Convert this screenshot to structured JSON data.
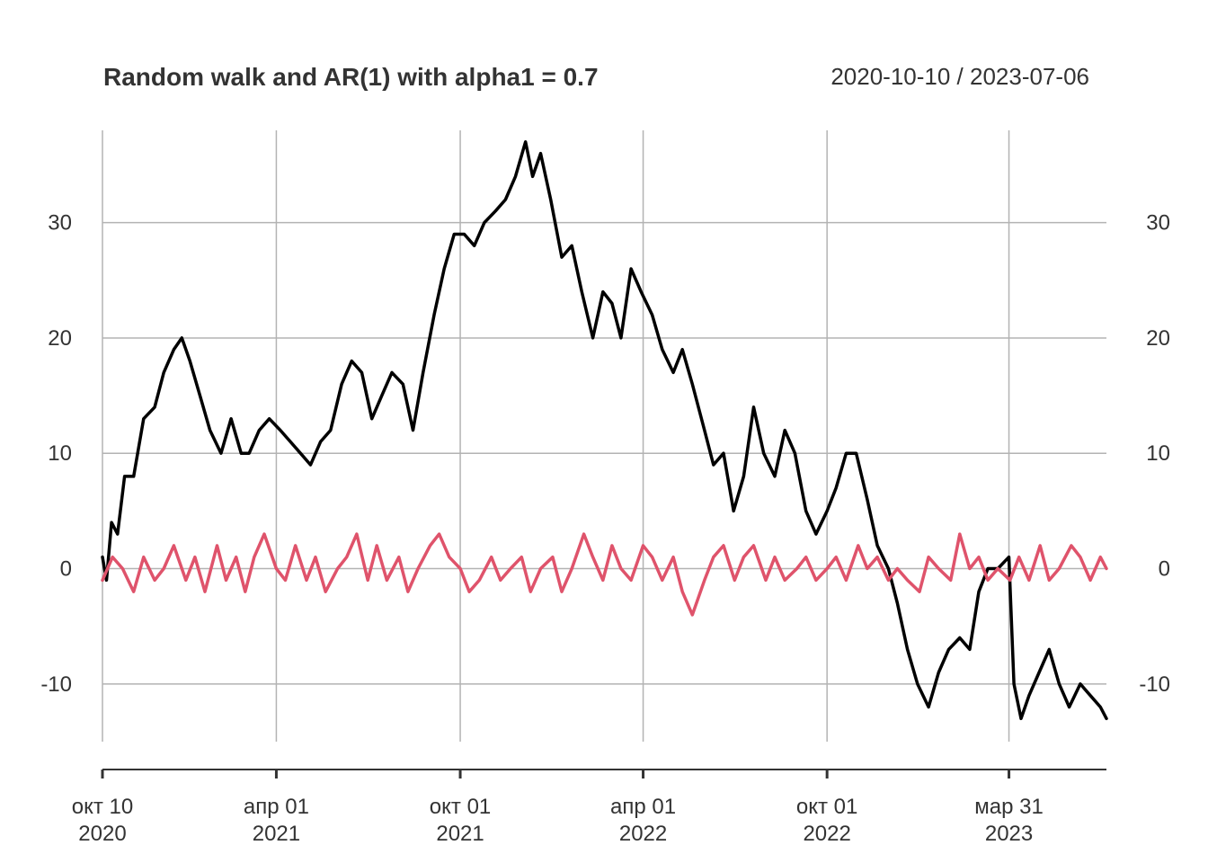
{
  "chart_data": {
    "type": "line",
    "title": "Random walk and AR(1) with alpha1 =  0.7",
    "date_range_label": "2020-10-10 / 2023-07-06",
    "x_start": "2020-10-10",
    "x_end": "2023-07-06",
    "ylim": [
      -15,
      38
    ],
    "y_ticks": [
      -10,
      0,
      10,
      20,
      30
    ],
    "y_tick_labels": [
      "-10",
      "0",
      "10",
      "20",
      "30"
    ],
    "x_ticks": [
      {
        "date": "2020-10-10",
        "month": "окт 10",
        "year": "2020"
      },
      {
        "date": "2021-04-01",
        "month": "апр 01",
        "year": "2021"
      },
      {
        "date": "2021-10-01",
        "month": "окт 01",
        "year": "2021"
      },
      {
        "date": "2022-04-01",
        "month": "апр 01",
        "year": "2022"
      },
      {
        "date": "2022-10-01",
        "month": "окт 01",
        "year": "2022"
      },
      {
        "date": "2023-03-31",
        "month": "мар 31",
        "year": "2023"
      }
    ],
    "grid": true,
    "series": [
      {
        "color": "#000000",
        "points": [
          [
            "2020-10-10",
            1
          ],
          [
            "2020-10-14",
            -1
          ],
          [
            "2020-10-19",
            4
          ],
          [
            "2020-10-25",
            3
          ],
          [
            "2020-11-01",
            8
          ],
          [
            "2020-11-10",
            8
          ],
          [
            "2020-11-20",
            13
          ],
          [
            "2020-12-01",
            14
          ],
          [
            "2020-12-10",
            17
          ],
          [
            "2020-12-20",
            19
          ],
          [
            "2020-12-28",
            20
          ],
          [
            "2021-01-05",
            18
          ],
          [
            "2021-01-15",
            15
          ],
          [
            "2021-01-25",
            12
          ],
          [
            "2021-02-05",
            10
          ],
          [
            "2021-02-15",
            13
          ],
          [
            "2021-02-25",
            10
          ],
          [
            "2021-03-05",
            10
          ],
          [
            "2021-03-15",
            12
          ],
          [
            "2021-03-25",
            13
          ],
          [
            "2021-04-05",
            12
          ],
          [
            "2021-04-15",
            11
          ],
          [
            "2021-04-25",
            10
          ],
          [
            "2021-05-05",
            9
          ],
          [
            "2021-05-15",
            11
          ],
          [
            "2021-05-25",
            12
          ],
          [
            "2021-06-05",
            16
          ],
          [
            "2021-06-15",
            18
          ],
          [
            "2021-06-25",
            17
          ],
          [
            "2021-07-05",
            13
          ],
          [
            "2021-07-15",
            15
          ],
          [
            "2021-07-25",
            17
          ],
          [
            "2021-08-05",
            16
          ],
          [
            "2021-08-15",
            12
          ],
          [
            "2021-08-25",
            17
          ],
          [
            "2021-09-05",
            22
          ],
          [
            "2021-09-15",
            26
          ],
          [
            "2021-09-25",
            29
          ],
          [
            "2021-10-05",
            29
          ],
          [
            "2021-10-15",
            28
          ],
          [
            "2021-10-25",
            30
          ],
          [
            "2021-11-05",
            31
          ],
          [
            "2021-11-15",
            32
          ],
          [
            "2021-11-25",
            34
          ],
          [
            "2021-12-05",
            37
          ],
          [
            "2021-12-12",
            34
          ],
          [
            "2021-12-20",
            36
          ],
          [
            "2021-12-30",
            32
          ],
          [
            "2022-01-10",
            27
          ],
          [
            "2022-01-20",
            28
          ],
          [
            "2022-01-30",
            24
          ],
          [
            "2022-02-10",
            20
          ],
          [
            "2022-02-20",
            24
          ],
          [
            "2022-03-01",
            23
          ],
          [
            "2022-03-10",
            20
          ],
          [
            "2022-03-20",
            26
          ],
          [
            "2022-03-30",
            24
          ],
          [
            "2022-04-10",
            22
          ],
          [
            "2022-04-20",
            19
          ],
          [
            "2022-05-01",
            17
          ],
          [
            "2022-05-10",
            19
          ],
          [
            "2022-05-20",
            16
          ],
          [
            "2022-06-01",
            12
          ],
          [
            "2022-06-10",
            9
          ],
          [
            "2022-06-20",
            10
          ],
          [
            "2022-06-30",
            5
          ],
          [
            "2022-07-10",
            8
          ],
          [
            "2022-07-20",
            14
          ],
          [
            "2022-07-30",
            10
          ],
          [
            "2022-08-10",
            8
          ],
          [
            "2022-08-20",
            12
          ],
          [
            "2022-08-30",
            10
          ],
          [
            "2022-09-10",
            5
          ],
          [
            "2022-09-20",
            3
          ],
          [
            "2022-10-01",
            5
          ],
          [
            "2022-10-10",
            7
          ],
          [
            "2022-10-20",
            10
          ],
          [
            "2022-10-30",
            10
          ],
          [
            "2022-11-10",
            6
          ],
          [
            "2022-11-20",
            2
          ],
          [
            "2022-12-01",
            0
          ],
          [
            "2022-12-10",
            -3
          ],
          [
            "2022-12-20",
            -7
          ],
          [
            "2022-12-30",
            -10
          ],
          [
            "2023-01-10",
            -12
          ],
          [
            "2023-01-20",
            -9
          ],
          [
            "2023-01-30",
            -7
          ],
          [
            "2023-02-10",
            -6
          ],
          [
            "2023-02-20",
            -7
          ],
          [
            "2023-03-01",
            -2
          ],
          [
            "2023-03-10",
            0
          ],
          [
            "2023-03-20",
            0
          ],
          [
            "2023-03-31",
            1
          ],
          [
            "2023-04-05",
            -10
          ],
          [
            "2023-04-12",
            -13
          ],
          [
            "2023-04-20",
            -11
          ],
          [
            "2023-04-30",
            -9
          ],
          [
            "2023-05-10",
            -7
          ],
          [
            "2023-05-20",
            -10
          ],
          [
            "2023-05-30",
            -12
          ],
          [
            "2023-06-10",
            -10
          ],
          [
            "2023-06-20",
            -11
          ],
          [
            "2023-06-30",
            -12
          ],
          [
            "2023-07-06",
            -13
          ]
        ]
      },
      {
        "color": "#DF536B",
        "points": [
          [
            "2020-10-10",
            -1
          ],
          [
            "2020-10-20",
            1
          ],
          [
            "2020-10-30",
            0
          ],
          [
            "2020-11-10",
            -2
          ],
          [
            "2020-11-20",
            1
          ],
          [
            "2020-12-01",
            -1
          ],
          [
            "2020-12-10",
            0
          ],
          [
            "2020-12-20",
            2
          ],
          [
            "2021-01-01",
            -1
          ],
          [
            "2021-01-10",
            1
          ],
          [
            "2021-01-20",
            -2
          ],
          [
            "2021-02-01",
            2
          ],
          [
            "2021-02-10",
            -1
          ],
          [
            "2021-02-20",
            1
          ],
          [
            "2021-03-01",
            -2
          ],
          [
            "2021-03-10",
            1
          ],
          [
            "2021-03-20",
            3
          ],
          [
            "2021-04-01",
            0
          ],
          [
            "2021-04-10",
            -1
          ],
          [
            "2021-04-20",
            2
          ],
          [
            "2021-05-01",
            -1
          ],
          [
            "2021-05-10",
            1
          ],
          [
            "2021-05-20",
            -2
          ],
          [
            "2021-06-01",
            0
          ],
          [
            "2021-06-10",
            1
          ],
          [
            "2021-06-20",
            3
          ],
          [
            "2021-07-01",
            -1
          ],
          [
            "2021-07-10",
            2
          ],
          [
            "2021-07-20",
            -1
          ],
          [
            "2021-08-01",
            1
          ],
          [
            "2021-08-10",
            -2
          ],
          [
            "2021-08-20",
            0
          ],
          [
            "2021-09-01",
            2
          ],
          [
            "2021-09-10",
            3
          ],
          [
            "2021-09-20",
            1
          ],
          [
            "2021-10-01",
            0
          ],
          [
            "2021-10-10",
            -2
          ],
          [
            "2021-10-20",
            -1
          ],
          [
            "2021-11-01",
            1
          ],
          [
            "2021-11-10",
            -1
          ],
          [
            "2021-11-20",
            0
          ],
          [
            "2021-12-01",
            1
          ],
          [
            "2021-12-10",
            -2
          ],
          [
            "2021-12-20",
            0
          ],
          [
            "2022-01-01",
            1
          ],
          [
            "2022-01-10",
            -2
          ],
          [
            "2022-01-20",
            0
          ],
          [
            "2022-02-01",
            3
          ],
          [
            "2022-02-10",
            1
          ],
          [
            "2022-02-20",
            -1
          ],
          [
            "2022-03-01",
            2
          ],
          [
            "2022-03-10",
            0
          ],
          [
            "2022-03-20",
            -1
          ],
          [
            "2022-04-01",
            2
          ],
          [
            "2022-04-10",
            1
          ],
          [
            "2022-04-20",
            -1
          ],
          [
            "2022-05-01",
            1
          ],
          [
            "2022-05-10",
            -2
          ],
          [
            "2022-05-20",
            -4
          ],
          [
            "2022-06-01",
            -1
          ],
          [
            "2022-06-10",
            1
          ],
          [
            "2022-06-20",
            2
          ],
          [
            "2022-07-01",
            -1
          ],
          [
            "2022-07-10",
            1
          ],
          [
            "2022-07-20",
            2
          ],
          [
            "2022-08-01",
            -1
          ],
          [
            "2022-08-10",
            1
          ],
          [
            "2022-08-20",
            -1
          ],
          [
            "2022-09-01",
            0
          ],
          [
            "2022-09-10",
            1
          ],
          [
            "2022-09-20",
            -1
          ],
          [
            "2022-10-01",
            0
          ],
          [
            "2022-10-10",
            1
          ],
          [
            "2022-10-20",
            -1
          ],
          [
            "2022-11-01",
            2
          ],
          [
            "2022-11-10",
            0
          ],
          [
            "2022-11-20",
            1
          ],
          [
            "2022-12-01",
            -1
          ],
          [
            "2022-12-10",
            0
          ],
          [
            "2022-12-20",
            -1
          ],
          [
            "2023-01-01",
            -2
          ],
          [
            "2023-01-10",
            1
          ],
          [
            "2023-01-20",
            0
          ],
          [
            "2023-02-01",
            -1
          ],
          [
            "2023-02-10",
            3
          ],
          [
            "2023-02-20",
            0
          ],
          [
            "2023-03-01",
            1
          ],
          [
            "2023-03-10",
            -1
          ],
          [
            "2023-03-20",
            0
          ],
          [
            "2023-04-01",
            -1
          ],
          [
            "2023-04-10",
            1
          ],
          [
            "2023-04-20",
            -1
          ],
          [
            "2023-05-01",
            2
          ],
          [
            "2023-05-10",
            -1
          ],
          [
            "2023-05-20",
            0
          ],
          [
            "2023-06-01",
            2
          ],
          [
            "2023-06-10",
            1
          ],
          [
            "2023-06-20",
            -1
          ],
          [
            "2023-06-30",
            1
          ],
          [
            "2023-07-06",
            0
          ]
        ]
      }
    ]
  }
}
